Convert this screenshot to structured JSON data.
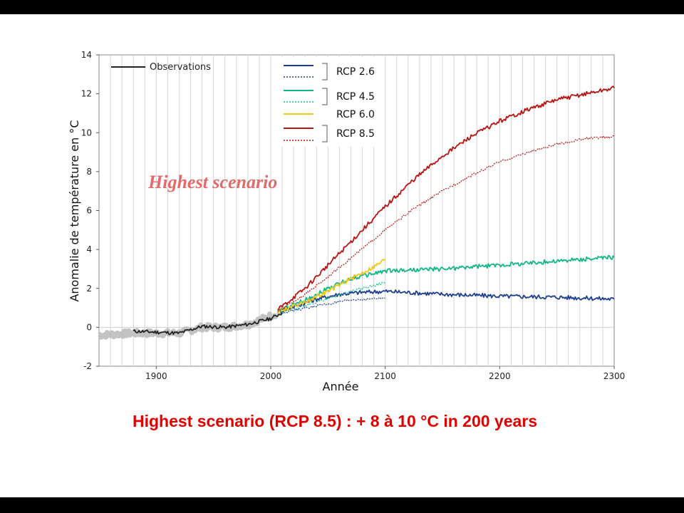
{
  "slide": {
    "caption": "Highest scenario (RCP 8.5) : + 8 à 10 °C in 200 years"
  },
  "colors": {
    "observations": "#222222",
    "historical_range": "#bdbdbd",
    "rcp26": "#1f3f8f",
    "rcp45": "#10b58a",
    "rcp60": "#f2c714",
    "rcp85": "#b81414",
    "annotation": "#e26a6a",
    "caption": "#e00000"
  },
  "chart_data": {
    "type": "line",
    "xlabel": "Année",
    "ylabel": "Anomalie de température en °C",
    "xlim": [
      1850,
      2300
    ],
    "ylim": [
      -2,
      14
    ],
    "xticks": [
      1900,
      2000,
      2100,
      2200,
      2300
    ],
    "yticks": [
      -2,
      0,
      2,
      4,
      6,
      8,
      10,
      12,
      14
    ],
    "grid": "vertical",
    "legend_position": "top",
    "annotation": "Highest scenario",
    "series": [
      {
        "name": "Observations",
        "key": "obs",
        "style": "solid",
        "points": [
          [
            1880,
            -0.2
          ],
          [
            1900,
            -0.25
          ],
          [
            1920,
            -0.3
          ],
          [
            1940,
            0.05
          ],
          [
            1960,
            0.0
          ],
          [
            1980,
            0.15
          ],
          [
            2000,
            0.45
          ],
          [
            2010,
            0.75
          ]
        ]
      },
      {
        "name": "RCP 2.6",
        "key": "rcp26",
        "style": "solid",
        "points": [
          [
            2006,
            0.8
          ],
          [
            2020,
            1.05
          ],
          [
            2040,
            1.45
          ],
          [
            2060,
            1.7
          ],
          [
            2080,
            1.8
          ],
          [
            2100,
            1.85
          ],
          [
            2150,
            1.7
          ],
          [
            2200,
            1.6
          ],
          [
            2250,
            1.55
          ],
          [
            2300,
            1.45
          ]
        ]
      },
      {
        "name": "RCP 2.6",
        "key": "rcp26",
        "style": "dotted",
        "points": [
          [
            2006,
            0.7
          ],
          [
            2040,
            1.1
          ],
          [
            2070,
            1.4
          ],
          [
            2100,
            1.5
          ]
        ]
      },
      {
        "name": "RCP 4.5",
        "key": "rcp45",
        "style": "solid",
        "points": [
          [
            2006,
            0.8
          ],
          [
            2030,
            1.4
          ],
          [
            2050,
            2.0
          ],
          [
            2070,
            2.5
          ],
          [
            2100,
            2.9
          ],
          [
            2150,
            3.0
          ],
          [
            2200,
            3.2
          ],
          [
            2250,
            3.4
          ],
          [
            2300,
            3.6
          ]
        ]
      },
      {
        "name": "RCP 4.5",
        "key": "rcp45",
        "style": "dotted",
        "points": [
          [
            2006,
            0.7
          ],
          [
            2040,
            1.3
          ],
          [
            2070,
            1.85
          ],
          [
            2100,
            2.3
          ]
        ]
      },
      {
        "name": "RCP 6.0",
        "key": "rcp60",
        "style": "solid",
        "points": [
          [
            2006,
            0.8
          ],
          [
            2030,
            1.3
          ],
          [
            2050,
            1.85
          ],
          [
            2070,
            2.5
          ],
          [
            2090,
            3.1
          ],
          [
            2100,
            3.5
          ]
        ]
      },
      {
        "name": "RCP 8.5",
        "key": "rcp85",
        "style": "solid",
        "points": [
          [
            2006,
            0.9
          ],
          [
            2030,
            2.0
          ],
          [
            2050,
            3.2
          ],
          [
            2075,
            4.7
          ],
          [
            2100,
            6.2
          ],
          [
            2125,
            7.6
          ],
          [
            2150,
            8.8
          ],
          [
            2175,
            9.8
          ],
          [
            2200,
            10.6
          ],
          [
            2225,
            11.2
          ],
          [
            2250,
            11.7
          ],
          [
            2275,
            12.0
          ],
          [
            2300,
            12.3
          ]
        ]
      },
      {
        "name": "RCP 8.5",
        "key": "rcp85",
        "style": "dotted",
        "points": [
          [
            2006,
            0.8
          ],
          [
            2030,
            1.7
          ],
          [
            2050,
            2.6
          ],
          [
            2075,
            3.8
          ],
          [
            2100,
            5.0
          ],
          [
            2125,
            6.1
          ],
          [
            2150,
            7.0
          ],
          [
            2175,
            7.8
          ],
          [
            2200,
            8.5
          ],
          [
            2225,
            9.0
          ],
          [
            2250,
            9.4
          ],
          [
            2275,
            9.7
          ],
          [
            2300,
            9.8
          ]
        ]
      }
    ],
    "legend": [
      {
        "label": "Observations",
        "key": "obs"
      },
      {
        "label": "RCP 2.6",
        "key": "rcp26"
      },
      {
        "label": "RCP 4.5",
        "key": "rcp45"
      },
      {
        "label": "RCP 6.0",
        "key": "rcp60"
      },
      {
        "label": "RCP 8.5",
        "key": "rcp85"
      }
    ]
  }
}
